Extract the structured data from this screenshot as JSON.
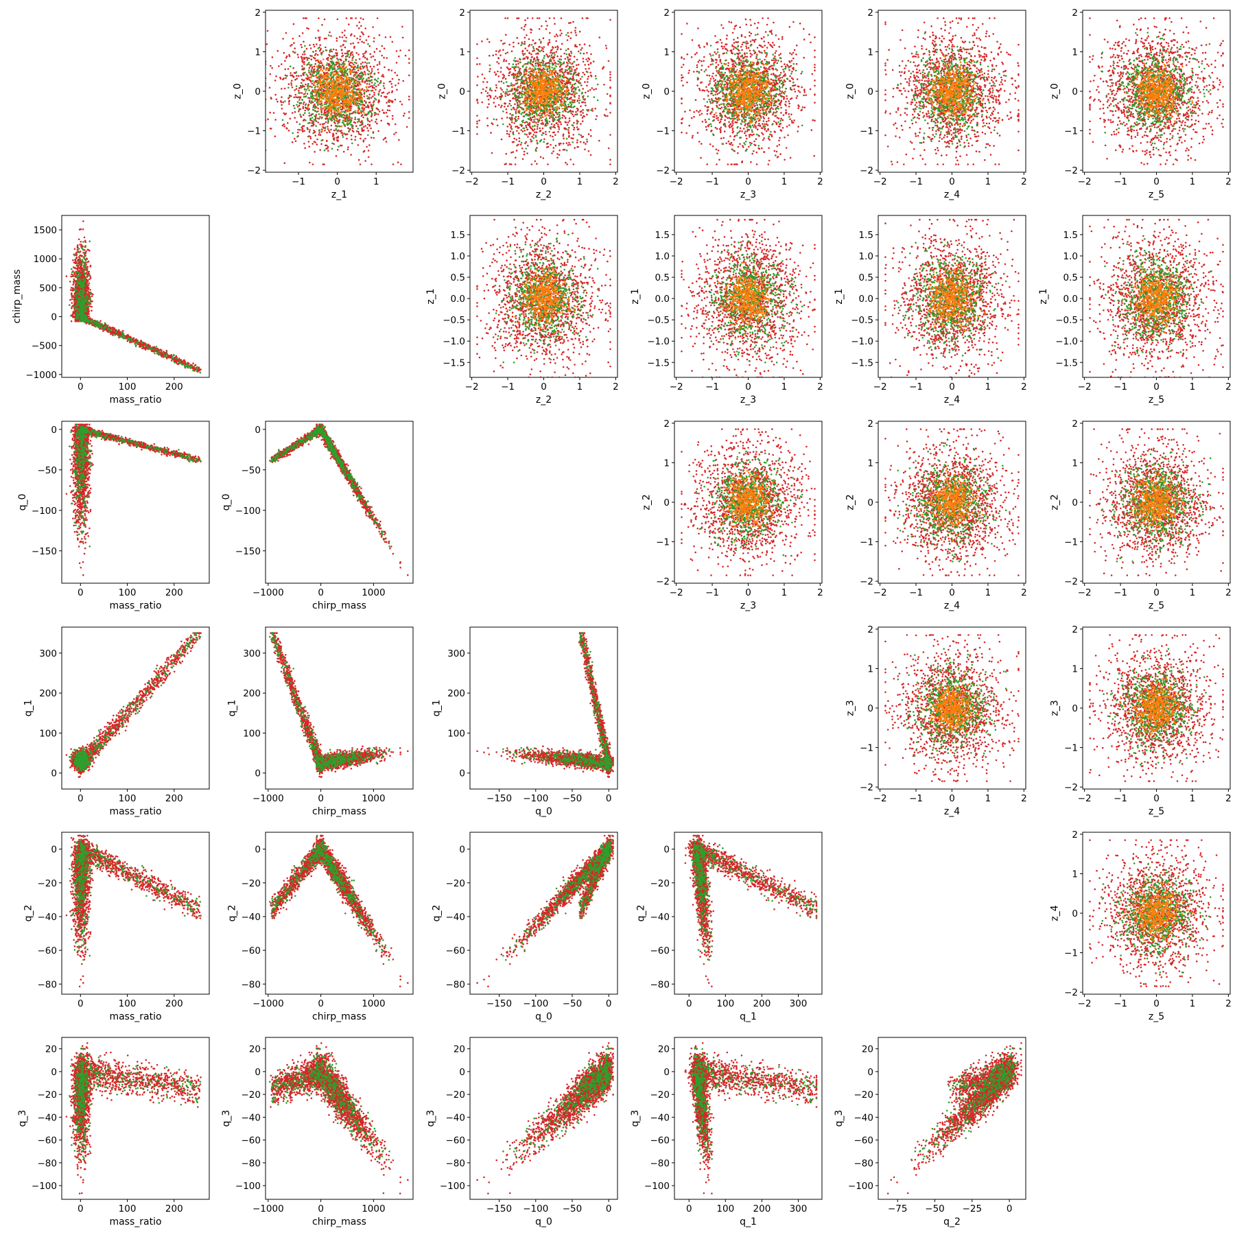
{
  "chart_data": {
    "type": "scatter",
    "description_grid": "6x6 pair plot of latent (z_*) and physical (q_*, mass_ratio, chirp_mass) variables",
    "colors": {
      "red": "#d62728",
      "green": "#2ca02c",
      "orange": "#ff7f0e"
    },
    "series": [
      {
        "key": "red",
        "color": "#d62728"
      },
      {
        "key": "green",
        "color": "#2ca02c"
      },
      {
        "key": "orange",
        "color": "#ff7f0e"
      }
    ],
    "panels": [
      {
        "row": 0,
        "col": 1,
        "kind": "gauss",
        "xlabel": "z_1",
        "ylabel": "z_0",
        "xlim": [
          -1.85,
          1.95
        ],
        "ylim": [
          -2.05,
          2.05
        ],
        "xticks": [
          -1,
          0,
          1
        ],
        "yticks": [
          -2,
          -1,
          0,
          1,
          2
        ]
      },
      {
        "row": 0,
        "col": 2,
        "kind": "gauss",
        "xlabel": "z_2",
        "ylabel": "z_0",
        "xlim": [
          -2.05,
          2.05
        ],
        "ylim": [
          -2.05,
          2.05
        ],
        "xticks": [
          -2,
          -1,
          0,
          1,
          2
        ],
        "yticks": [
          -2,
          -1,
          0,
          1,
          2
        ]
      },
      {
        "row": 0,
        "col": 3,
        "kind": "gauss",
        "xlabel": "z_3",
        "ylabel": "z_0",
        "xlim": [
          -2.05,
          2.05
        ],
        "ylim": [
          -2.05,
          2.05
        ],
        "xticks": [
          -2,
          -1,
          0,
          1,
          2
        ],
        "yticks": [
          -2,
          -1,
          0,
          1,
          2
        ]
      },
      {
        "row": 0,
        "col": 4,
        "kind": "gauss",
        "xlabel": "z_4",
        "ylabel": "z_0",
        "xlim": [
          -2.05,
          2.05
        ],
        "ylim": [
          -2.05,
          2.05
        ],
        "xticks": [
          -2,
          -1,
          0,
          1,
          2
        ],
        "yticks": [
          -2,
          -1,
          0,
          1,
          2
        ]
      },
      {
        "row": 0,
        "col": 5,
        "kind": "gauss",
        "xlabel": "z_5",
        "ylabel": "z_0",
        "xlim": [
          -2.05,
          2.05
        ],
        "ylim": [
          -2.05,
          2.05
        ],
        "xticks": [
          -2,
          -1,
          0,
          1,
          2
        ],
        "yticks": [
          -2,
          -1,
          0,
          1,
          2
        ]
      },
      {
        "row": 1,
        "col": 0,
        "kind": "mr_cm",
        "xlabel": "mass_ratio",
        "ylabel": "chirp_mass",
        "xlim": [
          -40,
          275
        ],
        "ylim": [
          -1050,
          1750
        ],
        "xticks": [
          0,
          100,
          200
        ],
        "yticks": [
          -1000,
          -500,
          0,
          500,
          1000,
          1500
        ]
      },
      {
        "row": 1,
        "col": 2,
        "kind": "gauss",
        "xlabel": "z_2",
        "ylabel": "z_1",
        "xlim": [
          -2.05,
          2.05
        ],
        "ylim": [
          -1.85,
          1.95
        ],
        "xticks": [
          -2,
          -1,
          0,
          1,
          2
        ],
        "yticks": [
          -1.5,
          -1.0,
          -0.5,
          0.0,
          0.5,
          1.0,
          1.5
        ],
        "ytick_labels": [
          "−1.5",
          "−1.0",
          "−0.5",
          "0.0",
          "0.5",
          "1.0",
          "1.5"
        ]
      },
      {
        "row": 1,
        "col": 3,
        "kind": "gauss",
        "xlabel": "z_3",
        "ylabel": "z_1",
        "xlim": [
          -2.05,
          2.05
        ],
        "ylim": [
          -1.85,
          1.95
        ],
        "xticks": [
          -2,
          -1,
          0,
          1,
          2
        ],
        "yticks": [
          -1.5,
          -1.0,
          -0.5,
          0.0,
          0.5,
          1.0,
          1.5
        ],
        "ytick_labels": [
          "−1.5",
          "−1.0",
          "−0.5",
          "0.0",
          "0.5",
          "1.0",
          "1.5"
        ]
      },
      {
        "row": 1,
        "col": 4,
        "kind": "gauss",
        "xlabel": "z_4",
        "ylabel": "z_1",
        "xlim": [
          -2.05,
          2.05
        ],
        "ylim": [
          -1.85,
          1.95
        ],
        "xticks": [
          -2,
          -1,
          0,
          1,
          2
        ],
        "yticks": [
          -1.5,
          -1.0,
          -0.5,
          0.0,
          0.5,
          1.0,
          1.5
        ],
        "ytick_labels": [
          "−1.5",
          "−1.0",
          "−0.5",
          "0.0",
          "0.5",
          "1.0",
          "1.5"
        ]
      },
      {
        "row": 1,
        "col": 5,
        "kind": "gauss",
        "xlabel": "z_5",
        "ylabel": "z_1",
        "xlim": [
          -2.05,
          2.05
        ],
        "ylim": [
          -1.85,
          1.95
        ],
        "xticks": [
          -2,
          -1,
          0,
          1,
          2
        ],
        "yticks": [
          -1.5,
          -1.0,
          -0.5,
          0.0,
          0.5,
          1.0,
          1.5
        ],
        "ytick_labels": [
          "−1.5",
          "−1.0",
          "−0.5",
          "0.0",
          "0.5",
          "1.0",
          "1.5"
        ]
      },
      {
        "row": 2,
        "col": 0,
        "kind": "mr_q0",
        "xlabel": "mass_ratio",
        "ylabel": "q_0",
        "xlim": [
          -40,
          275
        ],
        "ylim": [
          -190,
          10
        ],
        "xticks": [
          0,
          100,
          200
        ],
        "yticks": [
          -150,
          -100,
          -50,
          0
        ]
      },
      {
        "row": 2,
        "col": 1,
        "kind": "cm_q0",
        "xlabel": "chirp_mass",
        "ylabel": "q_0",
        "xlim": [
          -1050,
          1750
        ],
        "ylim": [
          -190,
          10
        ],
        "xticks": [
          -1000,
          0,
          1000
        ],
        "yticks": [
          -150,
          -100,
          -50,
          0
        ]
      },
      {
        "row": 2,
        "col": 3,
        "kind": "gauss",
        "xlabel": "z_3",
        "ylabel": "z_2",
        "xlim": [
          -2.05,
          2.05
        ],
        "ylim": [
          -2.05,
          2.05
        ],
        "xticks": [
          -2,
          -1,
          0,
          1,
          2
        ],
        "yticks": [
          -2,
          -1,
          0,
          1,
          2
        ]
      },
      {
        "row": 2,
        "col": 4,
        "kind": "gauss",
        "xlabel": "z_4",
        "ylabel": "z_2",
        "xlim": [
          -2.05,
          2.05
        ],
        "ylim": [
          -2.05,
          2.05
        ],
        "xticks": [
          -2,
          -1,
          0,
          1,
          2
        ],
        "yticks": [
          -2,
          -1,
          0,
          1,
          2
        ]
      },
      {
        "row": 2,
        "col": 5,
        "kind": "gauss",
        "xlabel": "z_5",
        "ylabel": "z_2",
        "xlim": [
          -2.05,
          2.05
        ],
        "ylim": [
          -2.05,
          2.05
        ],
        "xticks": [
          -2,
          -1,
          0,
          1,
          2
        ],
        "yticks": [
          -2,
          -1,
          0,
          1,
          2
        ]
      },
      {
        "row": 3,
        "col": 0,
        "kind": "mr_q1",
        "xlabel": "mass_ratio",
        "ylabel": "q_1",
        "xlim": [
          -40,
          275
        ],
        "ylim": [
          -40,
          365
        ],
        "xticks": [
          0,
          100,
          200
        ],
        "yticks": [
          0,
          100,
          200,
          300
        ]
      },
      {
        "row": 3,
        "col": 1,
        "kind": "cm_q1",
        "xlabel": "chirp_mass",
        "ylabel": "q_1",
        "xlim": [
          -1050,
          1750
        ],
        "ylim": [
          -40,
          365
        ],
        "xticks": [
          -1000,
          0,
          1000
        ],
        "yticks": [
          0,
          100,
          200,
          300
        ]
      },
      {
        "row": 3,
        "col": 2,
        "kind": "q0_q1",
        "xlabel": "q_0",
        "ylabel": "q_1",
        "xlim": [
          -190,
          12
        ],
        "ylim": [
          -40,
          365
        ],
        "xticks": [
          -150,
          -100,
          -50,
          0
        ],
        "yticks": [
          0,
          100,
          200,
          300
        ]
      },
      {
        "row": 3,
        "col": 4,
        "kind": "gauss",
        "xlabel": "z_4",
        "ylabel": "z_3",
        "xlim": [
          -2.05,
          2.05
        ],
        "ylim": [
          -2.05,
          2.05
        ],
        "xticks": [
          -2,
          -1,
          0,
          1,
          2
        ],
        "yticks": [
          -2,
          -1,
          0,
          1,
          2
        ]
      },
      {
        "row": 3,
        "col": 5,
        "kind": "gauss",
        "xlabel": "z_5",
        "ylabel": "z_3",
        "xlim": [
          -2.05,
          2.05
        ],
        "ylim": [
          -2.05,
          2.05
        ],
        "xticks": [
          -2,
          -1,
          0,
          1,
          2
        ],
        "yticks": [
          -2,
          -1,
          0,
          1,
          2
        ]
      },
      {
        "row": 4,
        "col": 0,
        "kind": "mr_q2",
        "xlabel": "mass_ratio",
        "ylabel": "q_2",
        "xlim": [
          -40,
          275
        ],
        "ylim": [
          -86,
          10
        ],
        "xticks": [
          0,
          100,
          200
        ],
        "yticks": [
          -80,
          -60,
          -40,
          -20,
          0
        ]
      },
      {
        "row": 4,
        "col": 1,
        "kind": "cm_q2",
        "xlabel": "chirp_mass",
        "ylabel": "q_2",
        "xlim": [
          -1050,
          1750
        ],
        "ylim": [
          -86,
          10
        ],
        "xticks": [
          -1000,
          0,
          1000
        ],
        "yticks": [
          -80,
          -60,
          -40,
          -20,
          0
        ]
      },
      {
        "row": 4,
        "col": 2,
        "kind": "q0_q2",
        "xlabel": "q_0",
        "ylabel": "q_2",
        "xlim": [
          -190,
          12
        ],
        "ylim": [
          -86,
          10
        ],
        "xticks": [
          -150,
          -100,
          -50,
          0
        ],
        "yticks": [
          -80,
          -60,
          -40,
          -20,
          0
        ]
      },
      {
        "row": 4,
        "col": 3,
        "kind": "q1_q2",
        "xlabel": "q_1",
        "ylabel": "q_2",
        "xlim": [
          -40,
          365
        ],
        "ylim": [
          -86,
          10
        ],
        "xticks": [
          0,
          100,
          200,
          300
        ],
        "yticks": [
          -80,
          -60,
          -40,
          -20,
          0
        ]
      },
      {
        "row": 4,
        "col": 5,
        "kind": "gauss",
        "xlabel": "z_5",
        "ylabel": "z_4",
        "xlim": [
          -2.05,
          2.05
        ],
        "ylim": [
          -2.05,
          2.05
        ],
        "xticks": [
          -2,
          -1,
          0,
          1,
          2
        ],
        "yticks": [
          -2,
          -1,
          0,
          1,
          2
        ]
      },
      {
        "row": 5,
        "col": 0,
        "kind": "mr_q3",
        "xlabel": "mass_ratio",
        "ylabel": "q_3",
        "xlim": [
          -40,
          275
        ],
        "ylim": [
          -112,
          30
        ],
        "xticks": [
          0,
          100,
          200
        ],
        "yticks": [
          -100,
          -80,
          -60,
          -40,
          -20,
          0,
          20
        ]
      },
      {
        "row": 5,
        "col": 1,
        "kind": "cm_q3",
        "xlabel": "chirp_mass",
        "ylabel": "q_3",
        "xlim": [
          -1050,
          1750
        ],
        "ylim": [
          -112,
          30
        ],
        "xticks": [
          -1000,
          0,
          1000
        ],
        "yticks": [
          -100,
          -80,
          -60,
          -40,
          -20,
          0,
          20
        ]
      },
      {
        "row": 5,
        "col": 2,
        "kind": "q0_q3",
        "xlabel": "q_0",
        "ylabel": "q_3",
        "xlim": [
          -190,
          12
        ],
        "ylim": [
          -112,
          30
        ],
        "xticks": [
          -150,
          -100,
          -50,
          0
        ],
        "yticks": [
          -100,
          -80,
          -60,
          -40,
          -20,
          0,
          20
        ]
      },
      {
        "row": 5,
        "col": 3,
        "kind": "q1_q3",
        "xlabel": "q_1",
        "ylabel": "q_3",
        "xlim": [
          -40,
          365
        ],
        "ylim": [
          -112,
          30
        ],
        "xticks": [
          0,
          100,
          200,
          300
        ],
        "yticks": [
          -100,
          -80,
          -60,
          -40,
          -20,
          0,
          20
        ]
      },
      {
        "row": 5,
        "col": 4,
        "kind": "q2_q3",
        "xlabel": "q_2",
        "ylabel": "q_3",
        "xlim": [
          -88,
          11
        ],
        "ylim": [
          -112,
          30
        ],
        "xticks": [
          -75,
          -50,
          -25,
          0
        ],
        "yticks": [
          -100,
          -80,
          -60,
          -40,
          -20,
          0,
          20
        ]
      }
    ]
  }
}
